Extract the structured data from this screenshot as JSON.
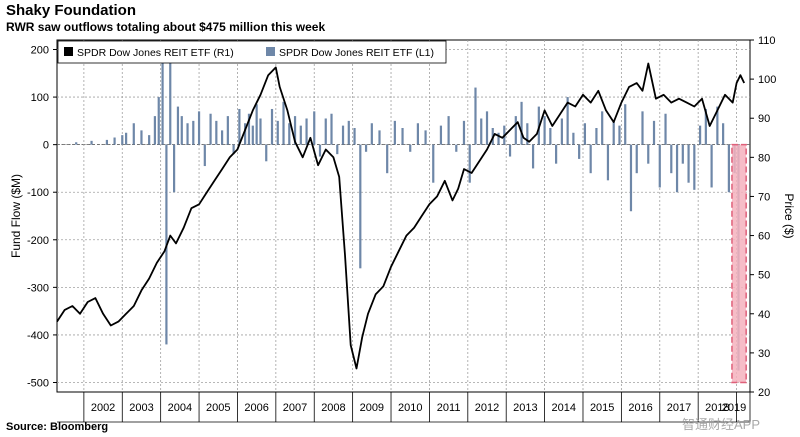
{
  "header": {
    "title": "Shaky Foundation",
    "subtitle": "RWR saw outflows totaling about $475 million this week"
  },
  "footer": {
    "source": "Source: Bloomberg",
    "watermark": "智通财经APP"
  },
  "colors": {
    "price_line": "#000000",
    "flow_bars": "#6e87a8",
    "highlight_fill": "#f4b2bd",
    "highlight_stroke": "#e0607a",
    "grid": "#a0a0a0"
  },
  "chart_data": {
    "type": "bar+line",
    "left_axis": {
      "label": "Fund Flow ($M)",
      "range": [
        -520,
        220
      ],
      "ticks": [
        200,
        100,
        0,
        -100,
        -200,
        -300,
        -400,
        -500
      ]
    },
    "right_axis": {
      "label": "Price ($)",
      "range": [
        20,
        110
      ],
      "ticks": [
        110,
        100,
        90,
        80,
        70,
        60,
        50,
        40,
        30,
        20
      ]
    },
    "x_axis": {
      "years": [
        "2002",
        "2003",
        "2004",
        "2005",
        "2006",
        "2007",
        "2008",
        "2009",
        "2010",
        "2011",
        "2012",
        "2013",
        "2014",
        "2015",
        "2016",
        "2017",
        "2018",
        "2019"
      ],
      "range": [
        2001.3,
        2019.35
      ]
    },
    "legend": [
      {
        "name": "SPDR Dow Jones REIT ETF  (R1)",
        "kind": "line"
      },
      {
        "name": "SPDR Dow Jones REIT ETF  (L1)",
        "kind": "bar"
      }
    ],
    "price_series": {
      "name": "SPDR Dow Jones REIT ETF (R1)",
      "x": [
        2001.3,
        2001.5,
        2001.7,
        2001.9,
        2002.1,
        2002.3,
        2002.5,
        2002.7,
        2002.9,
        2003.1,
        2003.3,
        2003.5,
        2003.7,
        2003.9,
        2004.1,
        2004.25,
        2004.4,
        2004.6,
        2004.8,
        2005.0,
        2005.2,
        2005.4,
        2005.6,
        2005.8,
        2006.0,
        2006.2,
        2006.4,
        2006.6,
        2006.8,
        2007.0,
        2007.1,
        2007.3,
        2007.5,
        2007.7,
        2007.9,
        2008.1,
        2008.3,
        2008.5,
        2008.65,
        2008.8,
        2008.95,
        2009.1,
        2009.25,
        2009.4,
        2009.6,
        2009.8,
        2010.0,
        2010.2,
        2010.4,
        2010.6,
        2010.8,
        2011.0,
        2011.2,
        2011.4,
        2011.6,
        2011.75,
        2011.9,
        2012.1,
        2012.3,
        2012.5,
        2012.7,
        2012.9,
        2013.1,
        2013.3,
        2013.45,
        2013.6,
        2013.8,
        2014.0,
        2014.2,
        2014.4,
        2014.6,
        2014.8,
        2015.0,
        2015.2,
        2015.4,
        2015.6,
        2015.8,
        2016.0,
        2016.2,
        2016.4,
        2016.55,
        2016.7,
        2016.9,
        2017.1,
        2017.3,
        2017.5,
        2017.7,
        2017.9,
        2018.1,
        2018.3,
        2018.5,
        2018.7,
        2018.9,
        2019.0,
        2019.1,
        2019.2
      ],
      "values": [
        38,
        41,
        42,
        40,
        43,
        44,
        40,
        37,
        38,
        40,
        42,
        46,
        49,
        53,
        56,
        60,
        58,
        62,
        67,
        68,
        71,
        74,
        77,
        80,
        82,
        87,
        92,
        96,
        101,
        103,
        98,
        92,
        84,
        80,
        85,
        78,
        82,
        80,
        75,
        55,
        32,
        26,
        34,
        40,
        45,
        47,
        52,
        56,
        60,
        62,
        65,
        68,
        70,
        74,
        69,
        72,
        77,
        76,
        79,
        82,
        86,
        85,
        87,
        89,
        85,
        84,
        86,
        92,
        88,
        91,
        94,
        93,
        96,
        94,
        97,
        92,
        89,
        94,
        98,
        99,
        97,
        104,
        95,
        96,
        94,
        95,
        94,
        93,
        95,
        88,
        92,
        96,
        94,
        99,
        101,
        99
      ]
    },
    "flow_series": {
      "name": "SPDR Dow Jones REIT ETF (L1)",
      "x": [
        2001.8,
        2002.2,
        2002.6,
        2002.8,
        2003.0,
        2003.1,
        2003.3,
        2003.5,
        2003.7,
        2003.85,
        2003.95,
        2004.05,
        2004.15,
        2004.25,
        2004.35,
        2004.45,
        2004.55,
        2004.7,
        2004.85,
        2005.0,
        2005.15,
        2005.3,
        2005.45,
        2005.6,
        2005.75,
        2005.9,
        2006.05,
        2006.2,
        2006.3,
        2006.4,
        2006.5,
        2006.6,
        2006.75,
        2006.9,
        2007.05,
        2007.2,
        2007.35,
        2007.5,
        2007.65,
        2007.8,
        2008.0,
        2008.15,
        2008.3,
        2008.45,
        2008.6,
        2008.75,
        2008.9,
        2009.05,
        2009.2,
        2009.35,
        2009.5,
        2009.7,
        2009.9,
        2010.1,
        2010.3,
        2010.5,
        2010.7,
        2010.9,
        2011.1,
        2011.3,
        2011.5,
        2011.7,
        2011.9,
        2012.05,
        2012.2,
        2012.35,
        2012.5,
        2012.65,
        2012.8,
        2012.95,
        2013.1,
        2013.25,
        2013.4,
        2013.55,
        2013.7,
        2013.85,
        2014.0,
        2014.15,
        2014.3,
        2014.45,
        2014.6,
        2014.75,
        2014.9,
        2015.05,
        2015.2,
        2015.35,
        2015.5,
        2015.65,
        2015.8,
        2015.95,
        2016.1,
        2016.25,
        2016.4,
        2016.55,
        2016.7,
        2016.85,
        2017.0,
        2017.15,
        2017.3,
        2017.45,
        2017.6,
        2017.75,
        2017.9,
        2018.05,
        2018.2,
        2018.35,
        2018.5,
        2018.65,
        2018.8,
        2018.95,
        2019.05
      ],
      "values": [
        5,
        8,
        10,
        15,
        20,
        25,
        45,
        30,
        20,
        60,
        100,
        190,
        -420,
        175,
        -100,
        80,
        60,
        45,
        50,
        70,
        -45,
        65,
        50,
        30,
        60,
        -20,
        75,
        45,
        65,
        40,
        85,
        55,
        -35,
        75,
        50,
        90,
        45,
        60,
        40,
        55,
        70,
        -25,
        55,
        65,
        -20,
        40,
        50,
        35,
        -260,
        -15,
        45,
        30,
        -60,
        50,
        35,
        -15,
        45,
        30,
        -80,
        40,
        60,
        -15,
        50,
        -80,
        120,
        55,
        70,
        35,
        25,
        40,
        -25,
        60,
        90,
        45,
        -50,
        80,
        60,
        35,
        -40,
        55,
        100,
        25,
        -30,
        45,
        -60,
        35,
        70,
        -75,
        50,
        40,
        85,
        -140,
        -60,
        70,
        -40,
        50,
        -90,
        65,
        -60,
        -100,
        -40,
        -80,
        -95,
        40,
        75,
        -90,
        80,
        45,
        -100,
        -60,
        -475
      ]
    },
    "annotation": {
      "type": "highlight-range",
      "x_range": [
        2018.88,
        2019.25
      ],
      "flow_range": [
        -500,
        0
      ]
    }
  }
}
